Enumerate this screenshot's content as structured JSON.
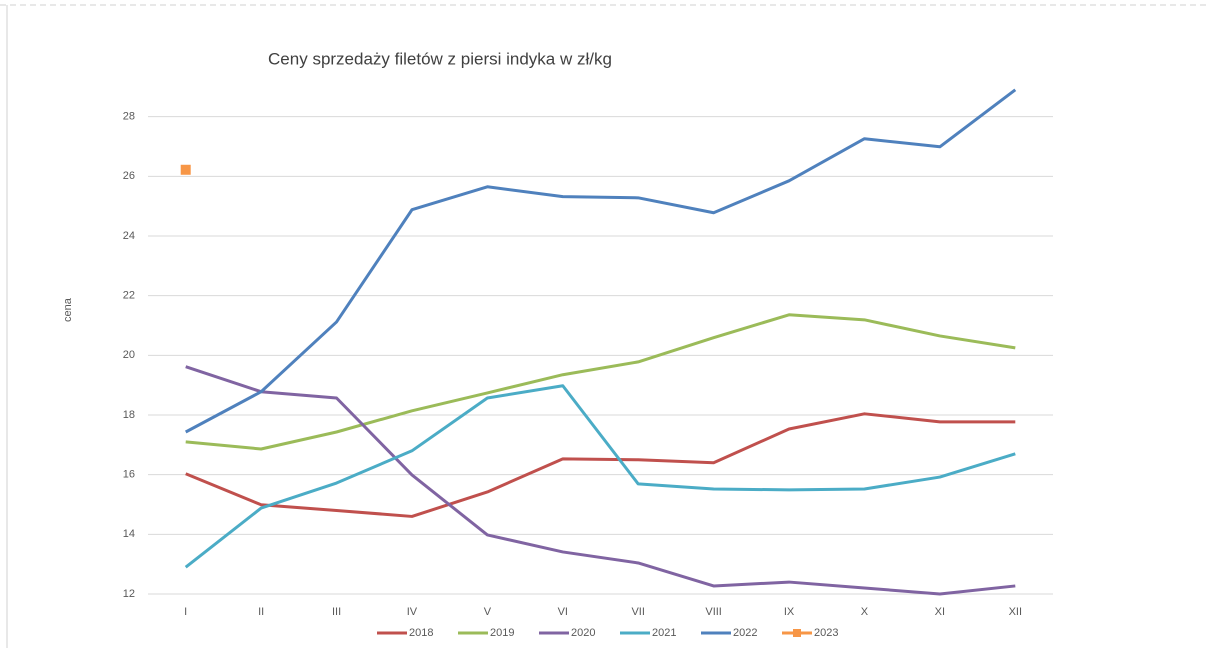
{
  "chart_data": {
    "type": "line",
    "title": "Ceny sprzedaży filetów z  piersi indyka w zł/kg",
    "y_label": "cena",
    "categories": [
      "I",
      "II",
      "III",
      "IV",
      "V",
      "VI",
      "VII",
      "VIII",
      "IX",
      "X",
      "XI",
      "XII"
    ],
    "series": [
      {
        "name": "2018",
        "color": "#c0504d",
        "values": [
          16.03,
          14.99,
          14.8,
          14.6,
          15.42,
          16.53,
          16.5,
          16.4,
          17.53,
          18.04,
          17.77,
          17.77
        ]
      },
      {
        "name": "2019",
        "color": "#9bbb59",
        "values": [
          17.1,
          16.86,
          17.43,
          18.14,
          18.74,
          19.35,
          19.78,
          20.59,
          21.36,
          21.19,
          20.65,
          20.25
        ]
      },
      {
        "name": "2020",
        "color": "#8064a2",
        "values": [
          19.62,
          18.78,
          18.57,
          15.99,
          13.98,
          13.41,
          13.04,
          12.27,
          12.4,
          12.2,
          12.0,
          12.27
        ]
      },
      {
        "name": "2021",
        "color": "#4bacc6",
        "values": [
          12.9,
          14.88,
          15.72,
          16.8,
          18.57,
          18.98,
          15.69,
          15.52,
          15.49,
          15.52,
          15.92,
          16.7
        ]
      },
      {
        "name": "2022",
        "color": "#4f81bd",
        "values": [
          17.43,
          18.78,
          21.12,
          24.88,
          25.65,
          25.32,
          25.28,
          24.78,
          25.85,
          27.26,
          26.99,
          28.9
        ]
      },
      {
        "name": "2023",
        "color": "#f79646",
        "marker": "square",
        "values": [
          26.22,
          null,
          null,
          null,
          null,
          null,
          null,
          null,
          null,
          null,
          null,
          null
        ]
      }
    ],
    "ylim": [
      12,
      30
    ],
    "yticks": [
      12,
      14,
      16,
      18,
      20,
      22,
      24,
      26,
      28
    ],
    "grid": true,
    "legend": "bottom"
  }
}
